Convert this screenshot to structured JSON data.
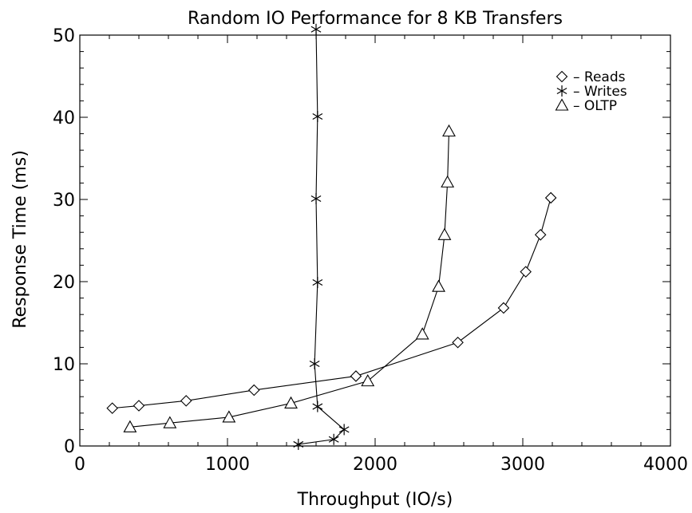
{
  "chart_data": {
    "type": "line",
    "title": "Random IO Performance for 8 KB Transfers",
    "xlabel": "Throughput (IO/s)",
    "ylabel": "Response Time (ms)",
    "xlim": [
      0,
      4000
    ],
    "ylim": [
      0,
      50
    ],
    "xticks": [
      0,
      1000,
      2000,
      3000,
      4000
    ],
    "yticks": [
      0,
      10,
      20,
      30,
      40,
      50
    ],
    "grid": false,
    "legend_position": "top-right",
    "series": [
      {
        "name": "Reads",
        "marker": "diamond",
        "points": [
          [
            220,
            4.6
          ],
          [
            400,
            4.9
          ],
          [
            720,
            5.5
          ],
          [
            1180,
            6.8
          ],
          [
            1870,
            8.5
          ],
          [
            2560,
            12.6
          ],
          [
            2870,
            16.8
          ],
          [
            3020,
            21.2
          ],
          [
            3120,
            25.7
          ],
          [
            3190,
            30.2
          ]
        ]
      },
      {
        "name": "Writes",
        "marker": "asterisk",
        "points": [
          [
            1480,
            0.2
          ],
          [
            1720,
            0.8
          ],
          [
            1790,
            2.0
          ],
          [
            1610,
            4.8
          ],
          [
            1590,
            10.0
          ],
          [
            1610,
            19.9
          ],
          [
            1600,
            30.1
          ],
          [
            1610,
            40.1
          ],
          [
            1600,
            50.7
          ]
        ]
      },
      {
        "name": "OLTP",
        "marker": "triangle",
        "points": [
          [
            340,
            2.3
          ],
          [
            610,
            2.8
          ],
          [
            1010,
            3.5
          ],
          [
            1430,
            5.2
          ],
          [
            1950,
            7.9
          ],
          [
            2320,
            13.6
          ],
          [
            2430,
            19.4
          ],
          [
            2470,
            25.7
          ],
          [
            2490,
            32.1
          ],
          [
            2500,
            38.3
          ]
        ]
      }
    ]
  }
}
